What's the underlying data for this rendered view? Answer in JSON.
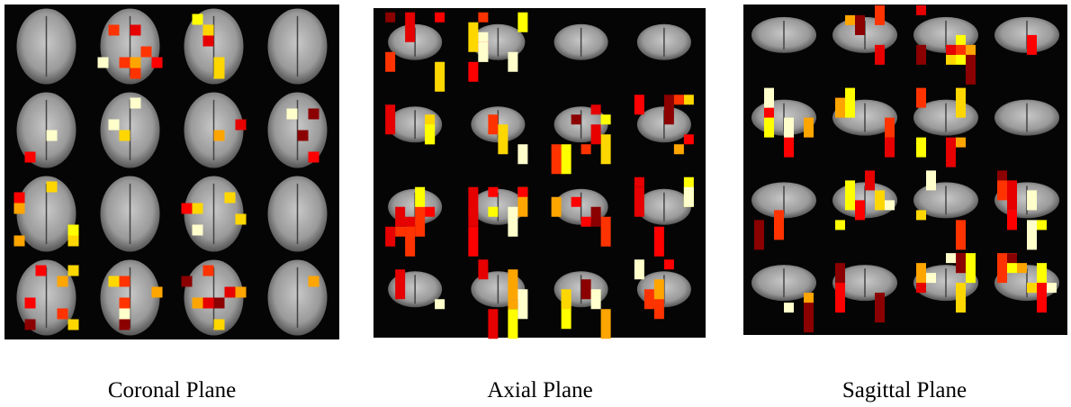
{
  "captions": [
    "Coronal Plane",
    "Axial Plane",
    "Sagittal Plane"
  ]
}
